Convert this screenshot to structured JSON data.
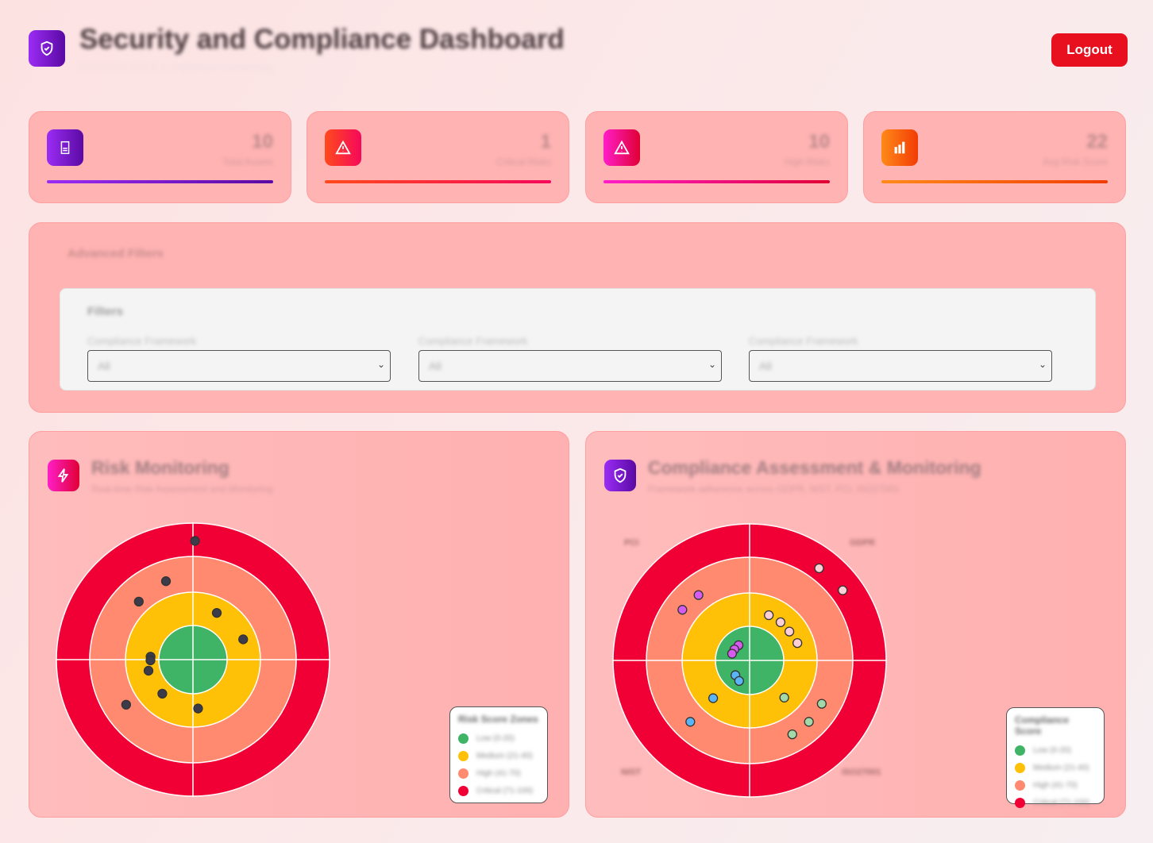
{
  "header": {
    "title": "Security and Compliance Dashboard",
    "subtitle": "Real-time risk & compliance monitoring",
    "logout_label": "Logout"
  },
  "stats": [
    {
      "value": "10",
      "label": "Total Assets",
      "icon": "document-icon",
      "colors": [
        "#9b2cf5",
        "#5a0aa3"
      ]
    },
    {
      "value": "1",
      "label": "Critical Risks",
      "icon": "warning-icon",
      "colors": [
        "#ff4a1c",
        "#f5085a"
      ]
    },
    {
      "value": "10",
      "label": "High Risks",
      "icon": "warning-icon",
      "colors": [
        "#ff1ec8",
        "#e00035"
      ]
    },
    {
      "value": "22",
      "label": "Avg Risk Score",
      "icon": "bar-chart-icon",
      "colors": [
        "#ff8a18",
        "#f23c05"
      ]
    }
  ],
  "filters": {
    "title": "Advanced Filters",
    "subtitle": "Filters",
    "fields": [
      {
        "label": "Compliance Framework",
        "value": "All"
      },
      {
        "label": "Compliance Framework",
        "value": "All"
      },
      {
        "label": "Compliance Framework",
        "value": "All"
      }
    ]
  },
  "risk": {
    "title": "Risk Monitoring",
    "subtitle": "Real-time Risk Assessment and Monitoring"
  },
  "compliance": {
    "title": "Compliance Assessment & Monitoring",
    "subtitle": "Framework adherence across GDPR, NIST, PCI, ISO27001"
  },
  "zones": {
    "colors": [
      "#3fb466",
      "#ffc107",
      "#ff8a70",
      "#f00035"
    ]
  },
  "chart_data": [
    {
      "type": "scatter",
      "title": "Risk Monitoring",
      "coords": "polar (score 0-100 radial, angle degrees)",
      "legend": {
        "title": "Risk Score Zones",
        "items": [
          "Low (0-20)",
          "Medium (21-40)",
          "High (41-70)",
          "Critical (71-100)"
        ]
      },
      "points": [
        {
          "score": 84,
          "angle": 89
        },
        {
          "score": 53,
          "angle": 109
        },
        {
          "score": 50,
          "angle": 133
        },
        {
          "score": 31,
          "angle": 63
        },
        {
          "score": 32,
          "angle": 22
        },
        {
          "score": 25,
          "angle": 176
        },
        {
          "score": 25,
          "angle": 181
        },
        {
          "score": 27,
          "angle": 194
        },
        {
          "score": 27,
          "angle": 228
        },
        {
          "score": 29,
          "angle": 276
        },
        {
          "score": 51,
          "angle": 214
        }
      ],
      "point_color": "#3b3b4a"
    },
    {
      "type": "scatter",
      "title": "Compliance Assessment & Monitoring",
      "coords": "polar (score 0-100 radial, angle degrees)",
      "legend": {
        "title": "Compliance Score",
        "items": [
          "Low (0-20)",
          "Medium (21-40)",
          "High (41-70)",
          "Critical (71-100)"
        ]
      },
      "quadrants": [
        "PCI",
        "GDPR",
        "NIST",
        "ISO27001"
      ],
      "series": [
        {
          "name": "GDPR",
          "color": "#ffcfd6",
          "points": [
            {
              "score": 81,
              "angle": 53
            },
            {
              "score": 82,
              "angle": 37
            },
            {
              "score": 29,
              "angle": 67
            },
            {
              "score": 29,
              "angle": 51
            },
            {
              "score": 29,
              "angle": 36
            },
            {
              "score": 30,
              "angle": 20
            }
          ]
        },
        {
          "name": "PCI",
          "color": "#d65cf0",
          "points": [
            {
              "score": 53,
              "angle": 128
            },
            {
              "score": 54,
              "angle": 143
            },
            {
              "score": 11,
              "angle": 126
            },
            {
              "score": 11,
              "angle": 144
            },
            {
              "score": 11,
              "angle": 159
            }
          ]
        },
        {
          "name": "NIST",
          "color": "#5ab4f5",
          "points": [
            {
              "score": 12,
              "angle": 226
            },
            {
              "score": 13.5,
              "angle": 243
            },
            {
              "score": 31,
              "angle": 226
            },
            {
              "score": 55,
              "angle": 226
            }
          ]
        },
        {
          "name": "ISO27001",
          "color": "#a3d8a8",
          "points": [
            {
              "score": 30,
              "angle": 313
            },
            {
              "score": 54,
              "angle": 329
            },
            {
              "score": 55,
              "angle": 314
            },
            {
              "score": 55,
              "angle": 300
            }
          ]
        }
      ]
    }
  ]
}
